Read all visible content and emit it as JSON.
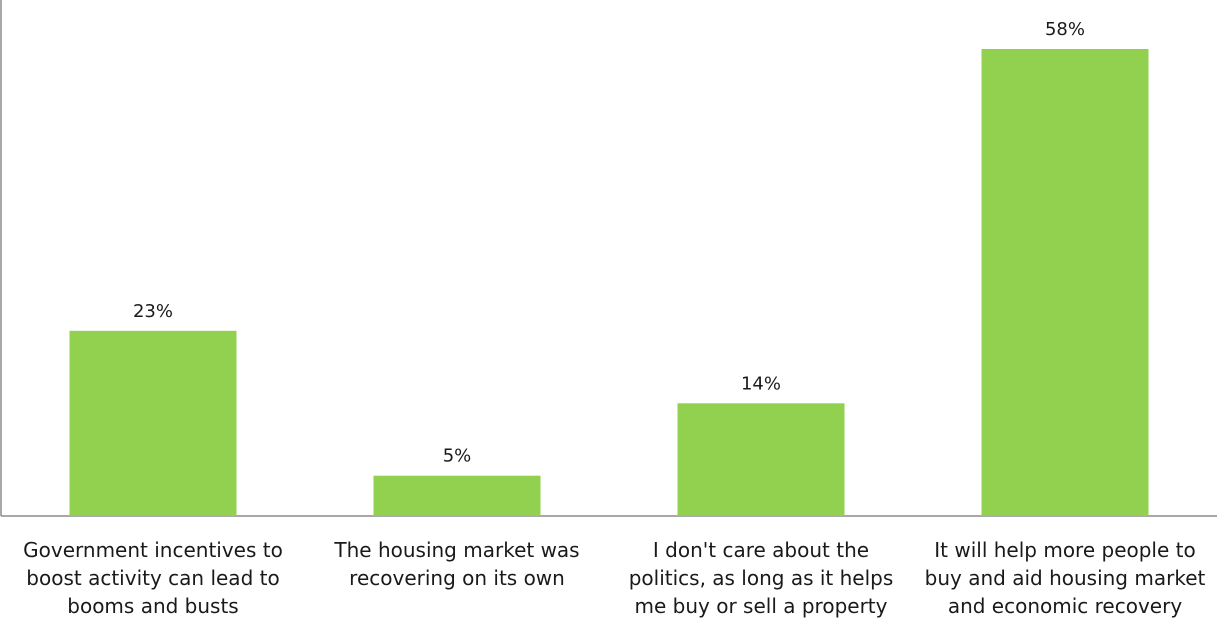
{
  "chart_data": {
    "type": "bar",
    "title": "",
    "xlabel": "",
    "ylabel": "",
    "ylim": [
      0,
      58
    ],
    "grid": false,
    "legend": "none",
    "bar_color": "#92D050",
    "categories": [
      "Government incentives to\nboost activity can lead to\nbooms and busts",
      "The housing market was\nrecovering on its own",
      "I don't care about the\npolitics, as long as it helps\nme buy or sell a property",
      "It will help more people to\nbuy and aid housing market\nand economic recovery"
    ],
    "values": [
      23,
      5,
      14,
      58
    ],
    "data_labels": [
      "23%",
      "5%",
      "14%",
      "58%"
    ]
  }
}
